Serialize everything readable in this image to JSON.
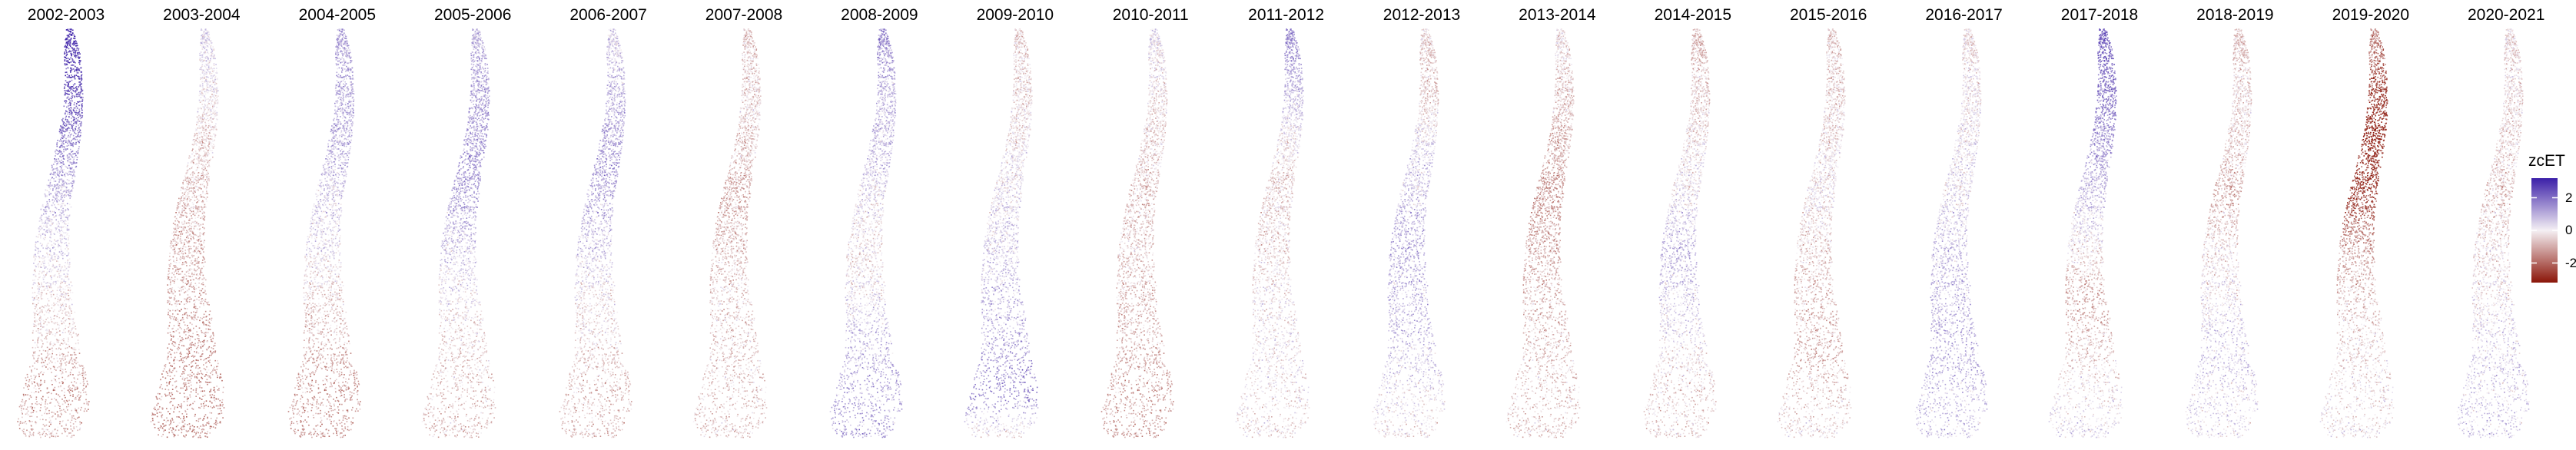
{
  "panels": [
    {
      "label": "2002-2003",
      "pattern": [
        [
          0.0,
          3.0
        ],
        [
          0.12,
          2.6
        ],
        [
          0.28,
          1.6
        ],
        [
          0.45,
          0.6
        ],
        [
          0.62,
          0.0
        ],
        [
          0.78,
          -0.7
        ],
        [
          0.9,
          -1.1
        ],
        [
          1.0,
          -0.8
        ]
      ]
    },
    {
      "label": "2003-2004",
      "pattern": [
        [
          0.0,
          0.4
        ],
        [
          0.15,
          0.1
        ],
        [
          0.3,
          -0.5
        ],
        [
          0.5,
          -0.8
        ],
        [
          0.7,
          -1.0
        ],
        [
          0.85,
          -1.3
        ],
        [
          1.0,
          -1.4
        ]
      ]
    },
    {
      "label": "2004-2005",
      "pattern": [
        [
          0.0,
          1.2
        ],
        [
          0.15,
          1.0
        ],
        [
          0.3,
          0.9
        ],
        [
          0.5,
          0.3
        ],
        [
          0.7,
          -0.6
        ],
        [
          0.85,
          -1.1
        ],
        [
          1.0,
          -1.2
        ]
      ]
    },
    {
      "label": "2005-2006",
      "pattern": [
        [
          0.0,
          0.8
        ],
        [
          0.2,
          1.2
        ],
        [
          0.35,
          1.3
        ],
        [
          0.55,
          0.5
        ],
        [
          0.7,
          -0.1
        ],
        [
          0.85,
          -0.5
        ],
        [
          1.0,
          -0.7
        ]
      ]
    },
    {
      "label": "2006-2007",
      "pattern": [
        [
          0.0,
          0.4
        ],
        [
          0.2,
          0.9
        ],
        [
          0.35,
          1.3
        ],
        [
          0.55,
          0.4
        ],
        [
          0.7,
          -0.2
        ],
        [
          0.85,
          -0.6
        ],
        [
          1.0,
          -0.7
        ]
      ]
    },
    {
      "label": "2007-2008",
      "pattern": [
        [
          0.0,
          -0.6
        ],
        [
          0.2,
          -0.3
        ],
        [
          0.4,
          -0.9
        ],
        [
          0.55,
          -0.6
        ],
        [
          0.7,
          -0.4
        ],
        [
          0.85,
          -0.5
        ],
        [
          1.0,
          -0.6
        ]
      ]
    },
    {
      "label": "2008-2009",
      "pattern": [
        [
          0.0,
          1.6
        ],
        [
          0.15,
          0.8
        ],
        [
          0.35,
          0.6
        ],
        [
          0.55,
          -0.3
        ],
        [
          0.7,
          0.4
        ],
        [
          0.85,
          1.0
        ],
        [
          1.0,
          1.2
        ]
      ]
    },
    {
      "label": "2009-2010",
      "pattern": [
        [
          0.0,
          -0.5
        ],
        [
          0.2,
          -0.2
        ],
        [
          0.4,
          0.2
        ],
        [
          0.6,
          0.6
        ],
        [
          0.75,
          1.0
        ],
        [
          0.9,
          1.6
        ],
        [
          1.0,
          -0.4
        ]
      ]
    },
    {
      "label": "2010-2011",
      "pattern": [
        [
          0.0,
          0.3
        ],
        [
          0.2,
          -0.3
        ],
        [
          0.4,
          -0.5
        ],
        [
          0.6,
          -0.6
        ],
        [
          0.8,
          -0.9
        ],
        [
          1.0,
          -1.1
        ]
      ]
    },
    {
      "label": "2011-2012",
      "pattern": [
        [
          0.0,
          1.6
        ],
        [
          0.15,
          0.8
        ],
        [
          0.35,
          -0.4
        ],
        [
          0.55,
          -0.3
        ],
        [
          0.75,
          0.1
        ],
        [
          1.0,
          -0.3
        ]
      ]
    },
    {
      "label": "2012-2013",
      "pattern": [
        [
          0.0,
          -0.3
        ],
        [
          0.15,
          -0.6
        ],
        [
          0.3,
          0.4
        ],
        [
          0.5,
          0.9
        ],
        [
          0.7,
          0.7
        ],
        [
          0.85,
          0.4
        ],
        [
          1.0,
          -0.2
        ]
      ]
    },
    {
      "label": "2013-2014",
      "pattern": [
        [
          0.0,
          -0.2
        ],
        [
          0.2,
          -0.6
        ],
        [
          0.4,
          -1.2
        ],
        [
          0.6,
          -0.8
        ],
        [
          0.8,
          -0.5
        ],
        [
          1.0,
          -0.6
        ]
      ]
    },
    {
      "label": "2014-2015",
      "pattern": [
        [
          0.0,
          -0.7
        ],
        [
          0.2,
          -0.4
        ],
        [
          0.4,
          0.2
        ],
        [
          0.55,
          0.8
        ],
        [
          0.7,
          0.3
        ],
        [
          0.85,
          -0.3
        ],
        [
          1.0,
          -0.4
        ]
      ]
    },
    {
      "label": "2015-2016",
      "pattern": [
        [
          0.0,
          -0.6
        ],
        [
          0.2,
          -0.3
        ],
        [
          0.4,
          0.0
        ],
        [
          0.6,
          -0.6
        ],
        [
          0.8,
          -0.8
        ],
        [
          1.0,
          -0.2
        ]
      ]
    },
    {
      "label": "2016-2017",
      "pattern": [
        [
          0.0,
          -0.2
        ],
        [
          0.2,
          0.0
        ],
        [
          0.4,
          0.3
        ],
        [
          0.6,
          0.7
        ],
        [
          0.8,
          0.9
        ],
        [
          1.0,
          0.6
        ]
      ]
    },
    {
      "label": "2017-2018",
      "pattern": [
        [
          0.0,
          2.2
        ],
        [
          0.15,
          1.8
        ],
        [
          0.3,
          1.2
        ],
        [
          0.5,
          0.2
        ],
        [
          0.65,
          -1.0
        ],
        [
          0.8,
          -0.4
        ],
        [
          1.0,
          0.3
        ]
      ]
    },
    {
      "label": "2018-2019",
      "pattern": [
        [
          0.0,
          -0.6
        ],
        [
          0.2,
          -0.3
        ],
        [
          0.4,
          -0.8
        ],
        [
          0.6,
          -0.1
        ],
        [
          0.8,
          0.5
        ],
        [
          1.0,
          0.2
        ]
      ]
    },
    {
      "label": "2019-2020",
      "pattern": [
        [
          0.0,
          -1.4
        ],
        [
          0.12,
          -2.2
        ],
        [
          0.25,
          -3.0
        ],
        [
          0.4,
          -2.6
        ],
        [
          0.55,
          -1.0
        ],
        [
          0.75,
          -0.3
        ],
        [
          1.0,
          -0.1
        ]
      ]
    },
    {
      "label": "2020-2021",
      "pattern": [
        [
          0.0,
          -0.2
        ],
        [
          0.2,
          -0.3
        ],
        [
          0.4,
          -0.5
        ],
        [
          0.6,
          -0.2
        ],
        [
          0.8,
          0.4
        ],
        [
          1.0,
          0.6
        ]
      ]
    }
  ],
  "legend": {
    "title": "zcET",
    "ticks": [
      {
        "value": 2,
        "label": "2"
      },
      {
        "value": 0,
        "label": "0"
      },
      {
        "value": -2,
        "label": "-2"
      }
    ],
    "range": [
      -3.2,
      3.2
    ],
    "colors": {
      "high": "#3b1fa8",
      "mid": "#f5f0f4",
      "low": "#8b1508"
    }
  }
}
